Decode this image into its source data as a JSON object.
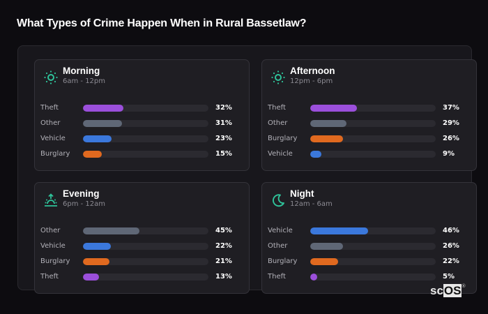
{
  "title": "What Types of Crime Happen When in Rural Bassetlaw?",
  "colors": {
    "accent_icon": "#2fc39a",
    "Theft": "#9b4fdb",
    "Other": "#5f6776",
    "Vehicle": "#3b78dc",
    "Burglary": "#e0691f"
  },
  "cards": [
    {
      "name": "Morning",
      "range": "6am - 12pm",
      "icon": "sun-icon",
      "rows": [
        {
          "label": "Theft",
          "value": 32,
          "pct": "32%"
        },
        {
          "label": "Other",
          "value": 31,
          "pct": "31%"
        },
        {
          "label": "Vehicle",
          "value": 23,
          "pct": "23%"
        },
        {
          "label": "Burglary",
          "value": 15,
          "pct": "15%"
        }
      ]
    },
    {
      "name": "Afternoon",
      "range": "12pm - 6pm",
      "icon": "sun-icon",
      "rows": [
        {
          "label": "Theft",
          "value": 37,
          "pct": "37%"
        },
        {
          "label": "Other",
          "value": 29,
          "pct": "29%"
        },
        {
          "label": "Burglary",
          "value": 26,
          "pct": "26%"
        },
        {
          "label": "Vehicle",
          "value": 9,
          "pct": "9%"
        }
      ]
    },
    {
      "name": "Evening",
      "range": "6pm - 12am",
      "icon": "sunset-icon",
      "rows": [
        {
          "label": "Other",
          "value": 45,
          "pct": "45%"
        },
        {
          "label": "Vehicle",
          "value": 22,
          "pct": "22%"
        },
        {
          "label": "Burglary",
          "value": 21,
          "pct": "21%"
        },
        {
          "label": "Theft",
          "value": 13,
          "pct": "13%"
        }
      ]
    },
    {
      "name": "Night",
      "range": "12am - 6am",
      "icon": "moon-icon",
      "rows": [
        {
          "label": "Vehicle",
          "value": 46,
          "pct": "46%"
        },
        {
          "label": "Other",
          "value": 26,
          "pct": "26%"
        },
        {
          "label": "Burglary",
          "value": 22,
          "pct": "22%"
        },
        {
          "label": "Theft",
          "value": 5,
          "pct": "5%"
        }
      ]
    }
  ],
  "logo": {
    "sc": "sc",
    "os": "OS",
    "mark": "®"
  },
  "chart_data": {
    "type": "bar",
    "title": "What Types of Crime Happen When in Rural Bassetlaw?",
    "orientation": "horizontal",
    "panels": [
      {
        "name": "Morning",
        "subtitle": "6am - 12pm",
        "categories": [
          "Theft",
          "Other",
          "Vehicle",
          "Burglary"
        ],
        "values": [
          32,
          31,
          23,
          15
        ]
      },
      {
        "name": "Afternoon",
        "subtitle": "12pm - 6pm",
        "categories": [
          "Theft",
          "Other",
          "Burglary",
          "Vehicle"
        ],
        "values": [
          37,
          29,
          26,
          9
        ]
      },
      {
        "name": "Evening",
        "subtitle": "6pm - 12am",
        "categories": [
          "Other",
          "Vehicle",
          "Burglary",
          "Theft"
        ],
        "values": [
          45,
          22,
          21,
          13
        ]
      },
      {
        "name": "Night",
        "subtitle": "12am - 6am",
        "categories": [
          "Vehicle",
          "Other",
          "Burglary",
          "Theft"
        ],
        "values": [
          46,
          26,
          22,
          5
        ]
      }
    ],
    "unit": "%",
    "xlim": [
      0,
      100
    ],
    "grid": false
  }
}
